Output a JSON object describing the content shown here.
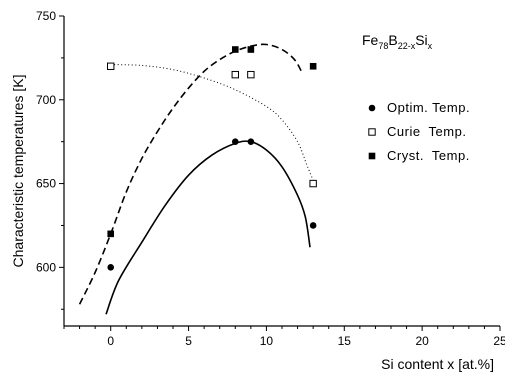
{
  "chart_data": {
    "type": "scatter",
    "xlabel": "Si content x [at.%]",
    "ylabel": "Characteristic temperatures [K]",
    "xlim": [
      -3,
      25
    ],
    "ylim": [
      565,
      750
    ],
    "x_ticks": [
      0,
      5,
      10,
      15,
      20,
      25
    ],
    "x_tick_labels": [
      "0",
      "5",
      "10",
      "15",
      "20",
      "25"
    ],
    "y_ticks": [
      600,
      650,
      700,
      750
    ],
    "y_tick_labels": [
      "600",
      "650",
      "700",
      "750"
    ],
    "annotation": {
      "base1": "Fe",
      "sub1": "78",
      "base2": "B",
      "sub2": "22-x",
      "base3": "Si",
      "sub3": "x"
    },
    "legend_position": "right",
    "series": [
      {
        "name": "Optim. Temp.",
        "marker": "filled-circle",
        "points": [
          [
            0,
            600
          ],
          [
            8,
            675
          ],
          [
            9,
            675
          ],
          [
            13,
            625
          ]
        ],
        "curve_style": "solid",
        "curve": [
          [
            -0.3,
            572
          ],
          [
            0.5,
            592
          ],
          [
            2,
            615
          ],
          [
            3.5,
            637
          ],
          [
            5,
            655
          ],
          [
            6.5,
            667
          ],
          [
            8,
            674
          ],
          [
            9,
            675
          ],
          [
            10,
            670
          ],
          [
            11,
            660
          ],
          [
            12,
            643
          ],
          [
            12.5,
            630
          ],
          [
            12.8,
            612
          ]
        ]
      },
      {
        "name": "Curie  Temp.",
        "marker": "open-square",
        "points": [
          [
            0,
            720
          ],
          [
            8,
            715
          ],
          [
            9,
            715
          ],
          [
            13,
            650
          ]
        ],
        "curve_style": "dotted",
        "curve": [
          [
            0,
            721
          ],
          [
            2,
            720.5
          ],
          [
            4,
            718
          ],
          [
            6,
            713
          ],
          [
            8,
            706
          ],
          [
            10,
            696
          ],
          [
            11,
            688
          ],
          [
            12,
            675
          ],
          [
            12.6,
            661
          ],
          [
            13,
            652
          ]
        ]
      },
      {
        "name": "Cryst.  Temp.",
        "marker": "filled-square",
        "points": [
          [
            0,
            620
          ],
          [
            8,
            730
          ],
          [
            9,
            730
          ],
          [
            13,
            720
          ]
        ],
        "curve_style": "dashed",
        "curve": [
          [
            -2,
            578
          ],
          [
            -1,
            597
          ],
          [
            0,
            620
          ],
          [
            1,
            645
          ],
          [
            2,
            665
          ],
          [
            3,
            681
          ],
          [
            4,
            695
          ],
          [
            5,
            707
          ],
          [
            6,
            717
          ],
          [
            7,
            724
          ],
          [
            8,
            729
          ],
          [
            9,
            732
          ],
          [
            10,
            733
          ],
          [
            11,
            730
          ],
          [
            11.8,
            724
          ],
          [
            12.3,
            716
          ]
        ]
      }
    ]
  }
}
